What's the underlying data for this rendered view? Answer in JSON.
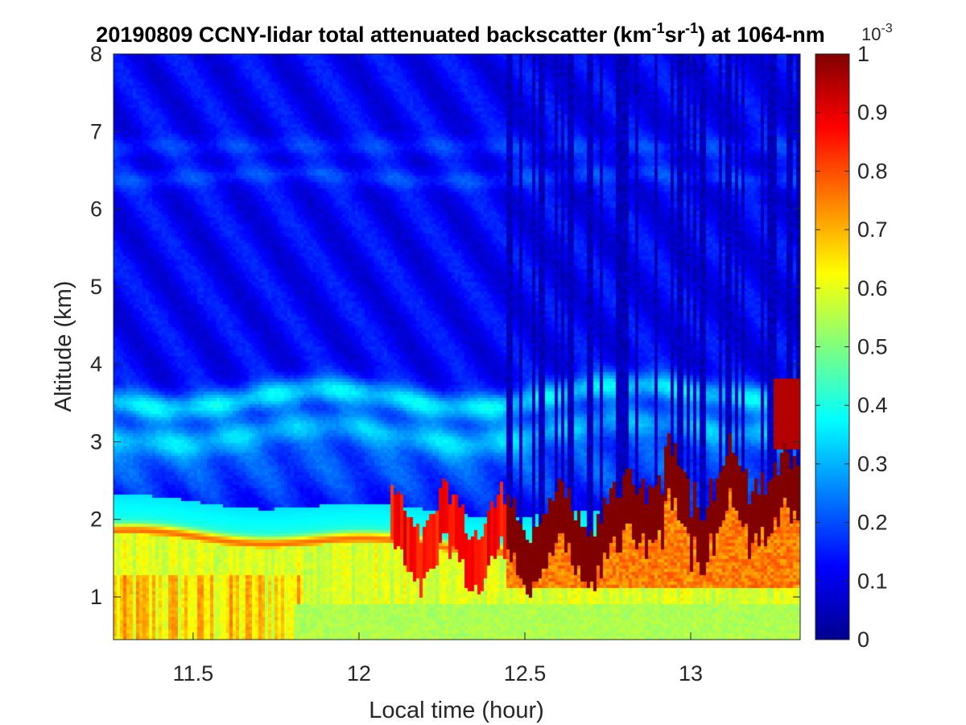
{
  "chart_data": {
    "type": "heatmap",
    "title": {
      "prefix": "20190809 CCNY-lidar total attenuated backscatter (km",
      "exp1": "-1",
      "mid": "sr",
      "exp2": "-1",
      "suffix": ") at 1064-nm"
    },
    "xlabel": "Local time (hour)",
    "ylabel": "Altitude (km)",
    "xlim": [
      11.26,
      13.33
    ],
    "ylim": [
      0.45,
      8
    ],
    "xticks": [
      11.5,
      12,
      12.5,
      13
    ],
    "xtick_labels": [
      "11.5",
      "12",
      "12.5",
      "13"
    ],
    "yticks": [
      1,
      2,
      3,
      4,
      5,
      6,
      7,
      8
    ],
    "ytick_labels": [
      "1",
      "2",
      "3",
      "4",
      "5",
      "6",
      "7",
      "8"
    ],
    "colorbar": {
      "colormap": "jet",
      "range": [
        0,
        1
      ],
      "ticks": [
        0,
        0.1,
        0.2,
        0.3,
        0.4,
        0.5,
        0.6,
        0.7,
        0.8,
        0.9,
        1
      ],
      "tick_labels": [
        "0",
        "0.1",
        "0.2",
        "0.3",
        "0.4",
        "0.5",
        "0.6",
        "0.7",
        "0.8",
        "0.9",
        "1"
      ],
      "multiplier_base": "10",
      "multiplier_exp": "-3"
    },
    "features": [
      {
        "layer": "elevated aerosol band",
        "altitude_km": [
          6.3,
          6.9
        ],
        "approx_value": 0.15
      },
      {
        "layer": "elevated aerosol layer",
        "altitude_km": [
          3.0,
          3.7
        ],
        "approx_value": 0.35
      },
      {
        "layer": "boundary layer top",
        "altitude_km": [
          1.6,
          2.2
        ],
        "approx_value": 0.75
      },
      {
        "layer": "low clouds (saturated)",
        "time_hr": [
          12.45,
          13.33
        ],
        "altitude_km": [
          1.3,
          2.6
        ],
        "approx_value": 1.0
      },
      {
        "layer": "signal blocked above clouds",
        "time_hr": [
          12.45,
          13.33
        ],
        "altitude_km": [
          2.0,
          8.0
        ],
        "approx_value": 0.05
      }
    ]
  }
}
